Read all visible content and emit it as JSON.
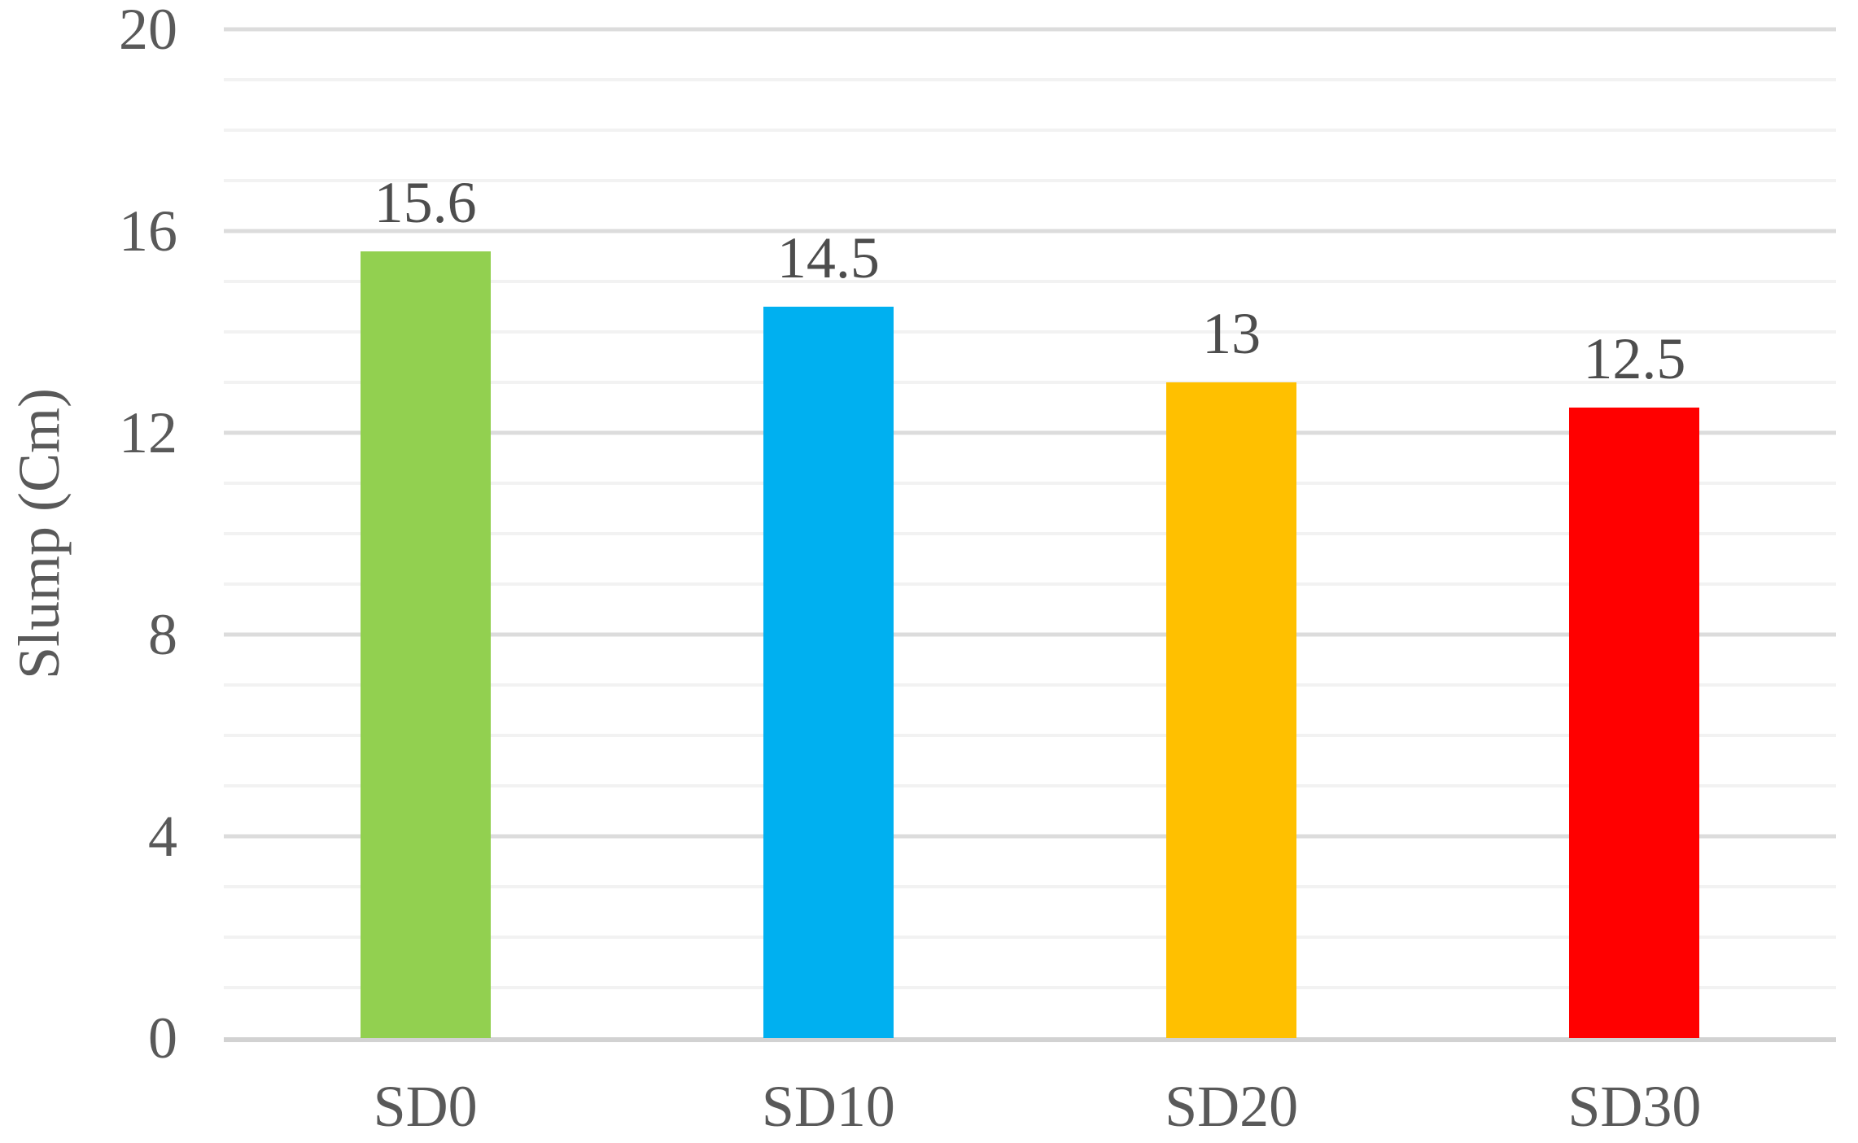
{
  "chart_data": {
    "type": "bar",
    "title": "",
    "xlabel": "",
    "ylabel": "Slump (Cm)",
    "categories": [
      "SD0",
      "SD10",
      "SD20",
      "SD30"
    ],
    "values": [
      15.6,
      14.5,
      13,
      12.5
    ],
    "data_labels": [
      "15.6",
      "14.5",
      "13",
      "12.5"
    ],
    "bar_colors": [
      "#92D050",
      "#00B0F0",
      "#FFC000",
      "#FF0000"
    ],
    "ylim": [
      0,
      20
    ],
    "yticks": [
      0,
      4,
      8,
      12,
      16,
      20
    ],
    "major_unit": 4,
    "minor_unit": 1,
    "grid": "horizontal major+minor",
    "legend_position": "none"
  },
  "colors": {
    "background": "#FFFFFF",
    "major_gridline": "#DCDCDC",
    "minor_gridline": "#F2F2F2",
    "axis_line": "#D2D2D2",
    "tick_label_text": "#595959",
    "data_label_text": "#4D4D4D"
  }
}
